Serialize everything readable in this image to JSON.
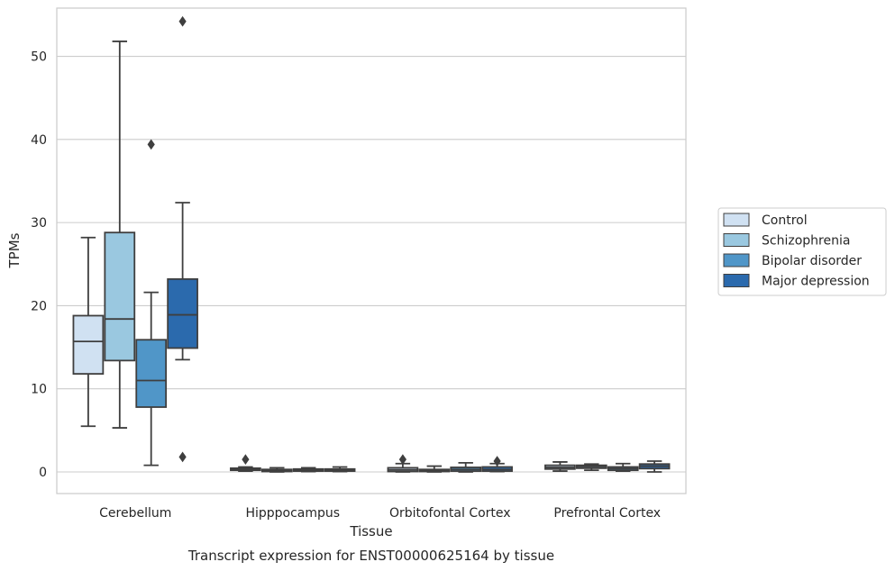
{
  "chart_data": {
    "type": "box",
    "title": "",
    "caption": "Transcript expression for ENST00000625164 by tissue",
    "xlabel": "Tissue",
    "ylabel": "TPMs",
    "ylim": [
      -2.6,
      55.8
    ],
    "yticks": [
      0,
      10,
      20,
      30,
      40,
      50
    ],
    "grid": "horizontal",
    "legend_position": "right",
    "categories": [
      "Cerebellum",
      "Hipppocampus",
      "Orbitofontal Cortex",
      "Prefrontal Cortex"
    ],
    "series": [
      {
        "name": "Control",
        "color": "#d0e1f2",
        "boxes": [
          {
            "whisker_low": 5.5,
            "q1": 11.8,
            "median": 15.7,
            "q3": 18.8,
            "whisker_high": 28.2,
            "outliers": []
          },
          {
            "whisker_low": 0.1,
            "q1": 0.2,
            "median": 0.3,
            "q3": 0.45,
            "whisker_high": 0.6,
            "outliers": [
              1.5
            ]
          },
          {
            "whisker_low": 0.0,
            "q1": 0.05,
            "median": 0.25,
            "q3": 0.5,
            "whisker_high": 1.0,
            "outliers": [
              1.5
            ]
          },
          {
            "whisker_low": 0.1,
            "q1": 0.35,
            "median": 0.55,
            "q3": 0.8,
            "whisker_high": 1.2,
            "outliers": []
          }
        ]
      },
      {
        "name": "Schizophrenia",
        "color": "#9ac8e0",
        "boxes": [
          {
            "whisker_low": 5.3,
            "q1": 13.4,
            "median": 18.4,
            "q3": 28.8,
            "whisker_high": 51.8,
            "outliers": []
          },
          {
            "whisker_low": 0.0,
            "q1": 0.05,
            "median": 0.15,
            "q3": 0.3,
            "whisker_high": 0.5,
            "outliers": []
          },
          {
            "whisker_low": 0.0,
            "q1": 0.05,
            "median": 0.15,
            "q3": 0.3,
            "whisker_high": 0.7,
            "outliers": []
          },
          {
            "whisker_low": 0.2,
            "q1": 0.45,
            "median": 0.65,
            "q3": 0.8,
            "whisker_high": 0.95,
            "outliers": []
          }
        ]
      },
      {
        "name": "Bipolar disorder",
        "color": "#5096c8",
        "boxes": [
          {
            "whisker_low": 0.8,
            "q1": 7.8,
            "median": 11.0,
            "q3": 15.9,
            "whisker_high": 21.6,
            "outliers": [
              39.4
            ]
          },
          {
            "whisker_low": 0.05,
            "q1": 0.1,
            "median": 0.25,
            "q3": 0.35,
            "whisker_high": 0.5,
            "outliers": []
          },
          {
            "whisker_low": 0.0,
            "q1": 0.1,
            "median": 0.3,
            "q3": 0.55,
            "whisker_high": 1.1,
            "outliers": []
          },
          {
            "whisker_low": 0.1,
            "q1": 0.2,
            "median": 0.4,
            "q3": 0.6,
            "whisker_high": 1.0,
            "outliers": []
          }
        ]
      },
      {
        "name": "Major depression",
        "color": "#2b6aad",
        "boxes": [
          {
            "whisker_low": 13.5,
            "q1": 14.9,
            "median": 18.9,
            "q3": 23.2,
            "whisker_high": 32.4,
            "outliers": [
              54.2,
              1.8
            ]
          },
          {
            "whisker_low": 0.05,
            "q1": 0.1,
            "median": 0.25,
            "q3": 0.35,
            "whisker_high": 0.6,
            "outliers": []
          },
          {
            "whisker_low": 0.05,
            "q1": 0.1,
            "median": 0.3,
            "q3": 0.6,
            "whisker_high": 1.0,
            "outliers": [
              1.3
            ]
          },
          {
            "whisker_low": 0.0,
            "q1": 0.4,
            "median": 0.7,
            "q3": 0.95,
            "whisker_high": 1.3,
            "outliers": []
          }
        ]
      }
    ]
  }
}
